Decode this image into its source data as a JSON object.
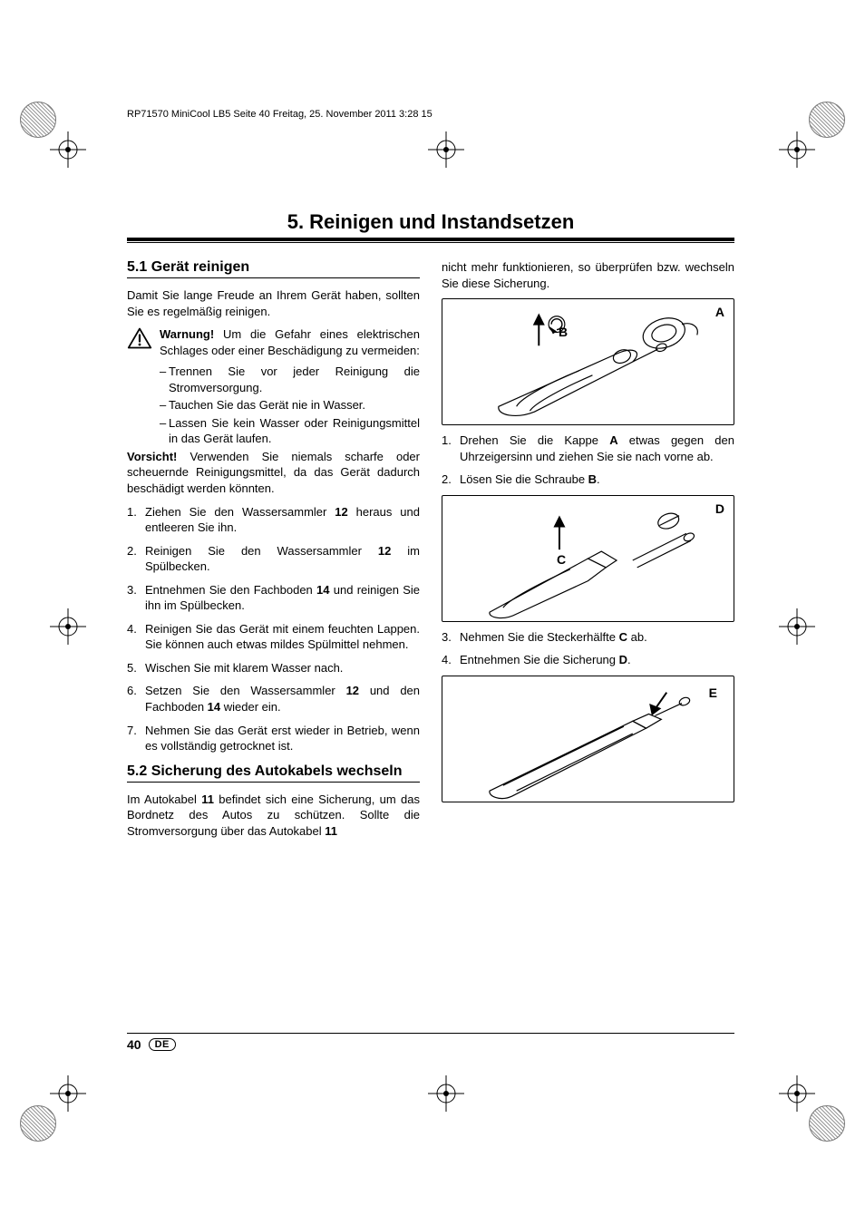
{
  "header_line": "RP71570 MiniCool LB5  Seite 40  Freitag, 25. November 2011  3:28 15",
  "chapter_title": "5. Reinigen und Instandsetzen",
  "left": {
    "sec51_head": "5.1  Gerät reinigen",
    "intro": "Damit Sie lange Freude an Ihrem Gerät haben, sollten Sie es regelmäßig reinigen.",
    "warn_lead": "Warnung!",
    "warn_text": " Um die Gefahr eines elektrischen Schlages oder einer Beschädigung zu vermeiden:",
    "warn_items": [
      "Trennen Sie vor jeder Reinigung die Stromversorgung.",
      "Tauchen Sie das Gerät nie in Wasser.",
      "Lassen Sie kein Wasser oder Reinigungsmittel in das Gerät laufen."
    ],
    "caution_lead": "Vorsicht!",
    "caution_text": " Verwenden Sie niemals scharfe oder scheuernde Reinigungsmittel, da das Gerät dadurch beschädigt werden könnten.",
    "steps51": [
      [
        [
          "t",
          "Ziehen Sie den Wassersammler "
        ],
        [
          "b",
          "12"
        ],
        [
          "t",
          " heraus und entleeren Sie ihn."
        ]
      ],
      [
        [
          "t",
          "Reinigen Sie den Wassersammler "
        ],
        [
          "b",
          "12"
        ],
        [
          "t",
          " im Spülbecken."
        ]
      ],
      [
        [
          "t",
          "Entnehmen Sie den Fachboden "
        ],
        [
          "b",
          "14"
        ],
        [
          "t",
          " und reinigen Sie ihn im Spülbecken."
        ]
      ],
      [
        [
          "t",
          "Reinigen Sie das Gerät mit einem feuchten Lappen. Sie können auch etwas mildes Spülmittel nehmen."
        ]
      ],
      [
        [
          "t",
          "Wischen Sie mit klarem Wasser nach."
        ]
      ],
      [
        [
          "t",
          "Setzen Sie den Wassersammler "
        ],
        [
          "b",
          "12"
        ],
        [
          "t",
          " und den Fachboden "
        ],
        [
          "b",
          "14"
        ],
        [
          "t",
          " wieder ein."
        ]
      ],
      [
        [
          "t",
          "Nehmen Sie das Gerät erst wieder in Betrieb, wenn es vollständig getrocknet ist."
        ]
      ]
    ],
    "sec52_head": "5.2  Sicherung des Autokabels wechseln",
    "sec52_text": [
      [
        "t",
        "Im Autokabel "
      ],
      [
        "b",
        "11"
      ],
      [
        "t",
        " befindet sich eine Sicherung, um das Bordnetz des Autos zu schützen. Sollte die Stromversorgung über das Autokabel "
      ],
      [
        "b",
        "11"
      ]
    ]
  },
  "right": {
    "cont_text": "nicht mehr funktionieren, so überprüfen bzw. wechseln Sie diese Sicherung.",
    "fig1_labels": {
      "A": "A",
      "B": "B"
    },
    "steps_after_fig1": [
      [
        [
          "t",
          "Drehen Sie die Kappe "
        ],
        [
          "b",
          "A"
        ],
        [
          "t",
          " etwas gegen den Uhrzeigersinn und ziehen Sie sie nach vorne ab."
        ]
      ],
      [
        [
          "t",
          "Lösen Sie die Schraube "
        ],
        [
          "b",
          "B"
        ],
        [
          "t",
          "."
        ]
      ]
    ],
    "fig2_labels": {
      "C": "C",
      "D": "D"
    },
    "steps_after_fig2": [
      [
        [
          "t",
          "Nehmen Sie die Steckerhälfte "
        ],
        [
          "b",
          "C"
        ],
        [
          "t",
          " ab."
        ]
      ],
      [
        [
          "t",
          "Entnehmen Sie die Sicherung "
        ],
        [
          "b",
          "D"
        ],
        [
          "t",
          "."
        ]
      ]
    ],
    "fig3_labels": {
      "E": "E"
    }
  },
  "footer": {
    "page": "40",
    "lang": "DE"
  },
  "colors": {
    "text": "#000000",
    "bg": "#ffffff",
    "rule": "#000000"
  }
}
